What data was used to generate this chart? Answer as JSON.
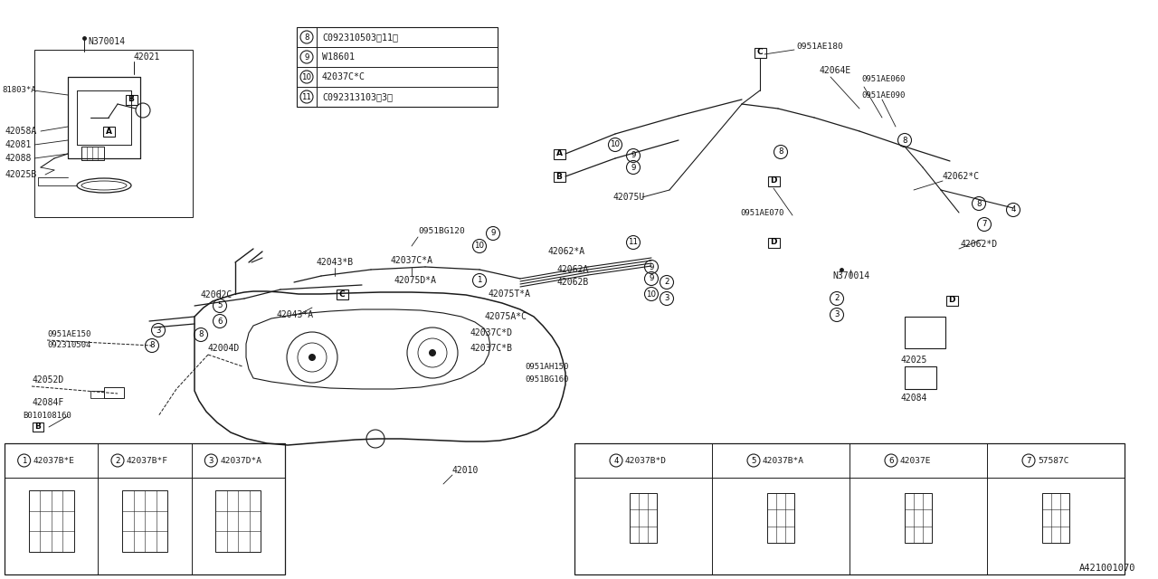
{
  "bg_color": "#ffffff",
  "line_color": "#1a1a1a",
  "diagram_id": "A421001070",
  "legend_items": [
    {
      "num": "8",
      "code": "C092310503】11】"
    },
    {
      "num": "9",
      "code": "W18601"
    },
    {
      "num": "10",
      "code": "42037C*C"
    },
    {
      "num": "11",
      "code": "C092313103】3】"
    }
  ],
  "bottom_left_parts": [
    {
      "num": "1",
      "code": "42037B*E"
    },
    {
      "num": "2",
      "code": "42037B*F"
    },
    {
      "num": "3",
      "code": "42037D*A"
    }
  ],
  "bottom_right_parts": [
    {
      "num": "4",
      "code": "42037B*D"
    },
    {
      "num": "5",
      "code": "42037B*A"
    },
    {
      "num": "6",
      "code": "42037E"
    },
    {
      "num": "7",
      "code": "57587C"
    }
  ]
}
